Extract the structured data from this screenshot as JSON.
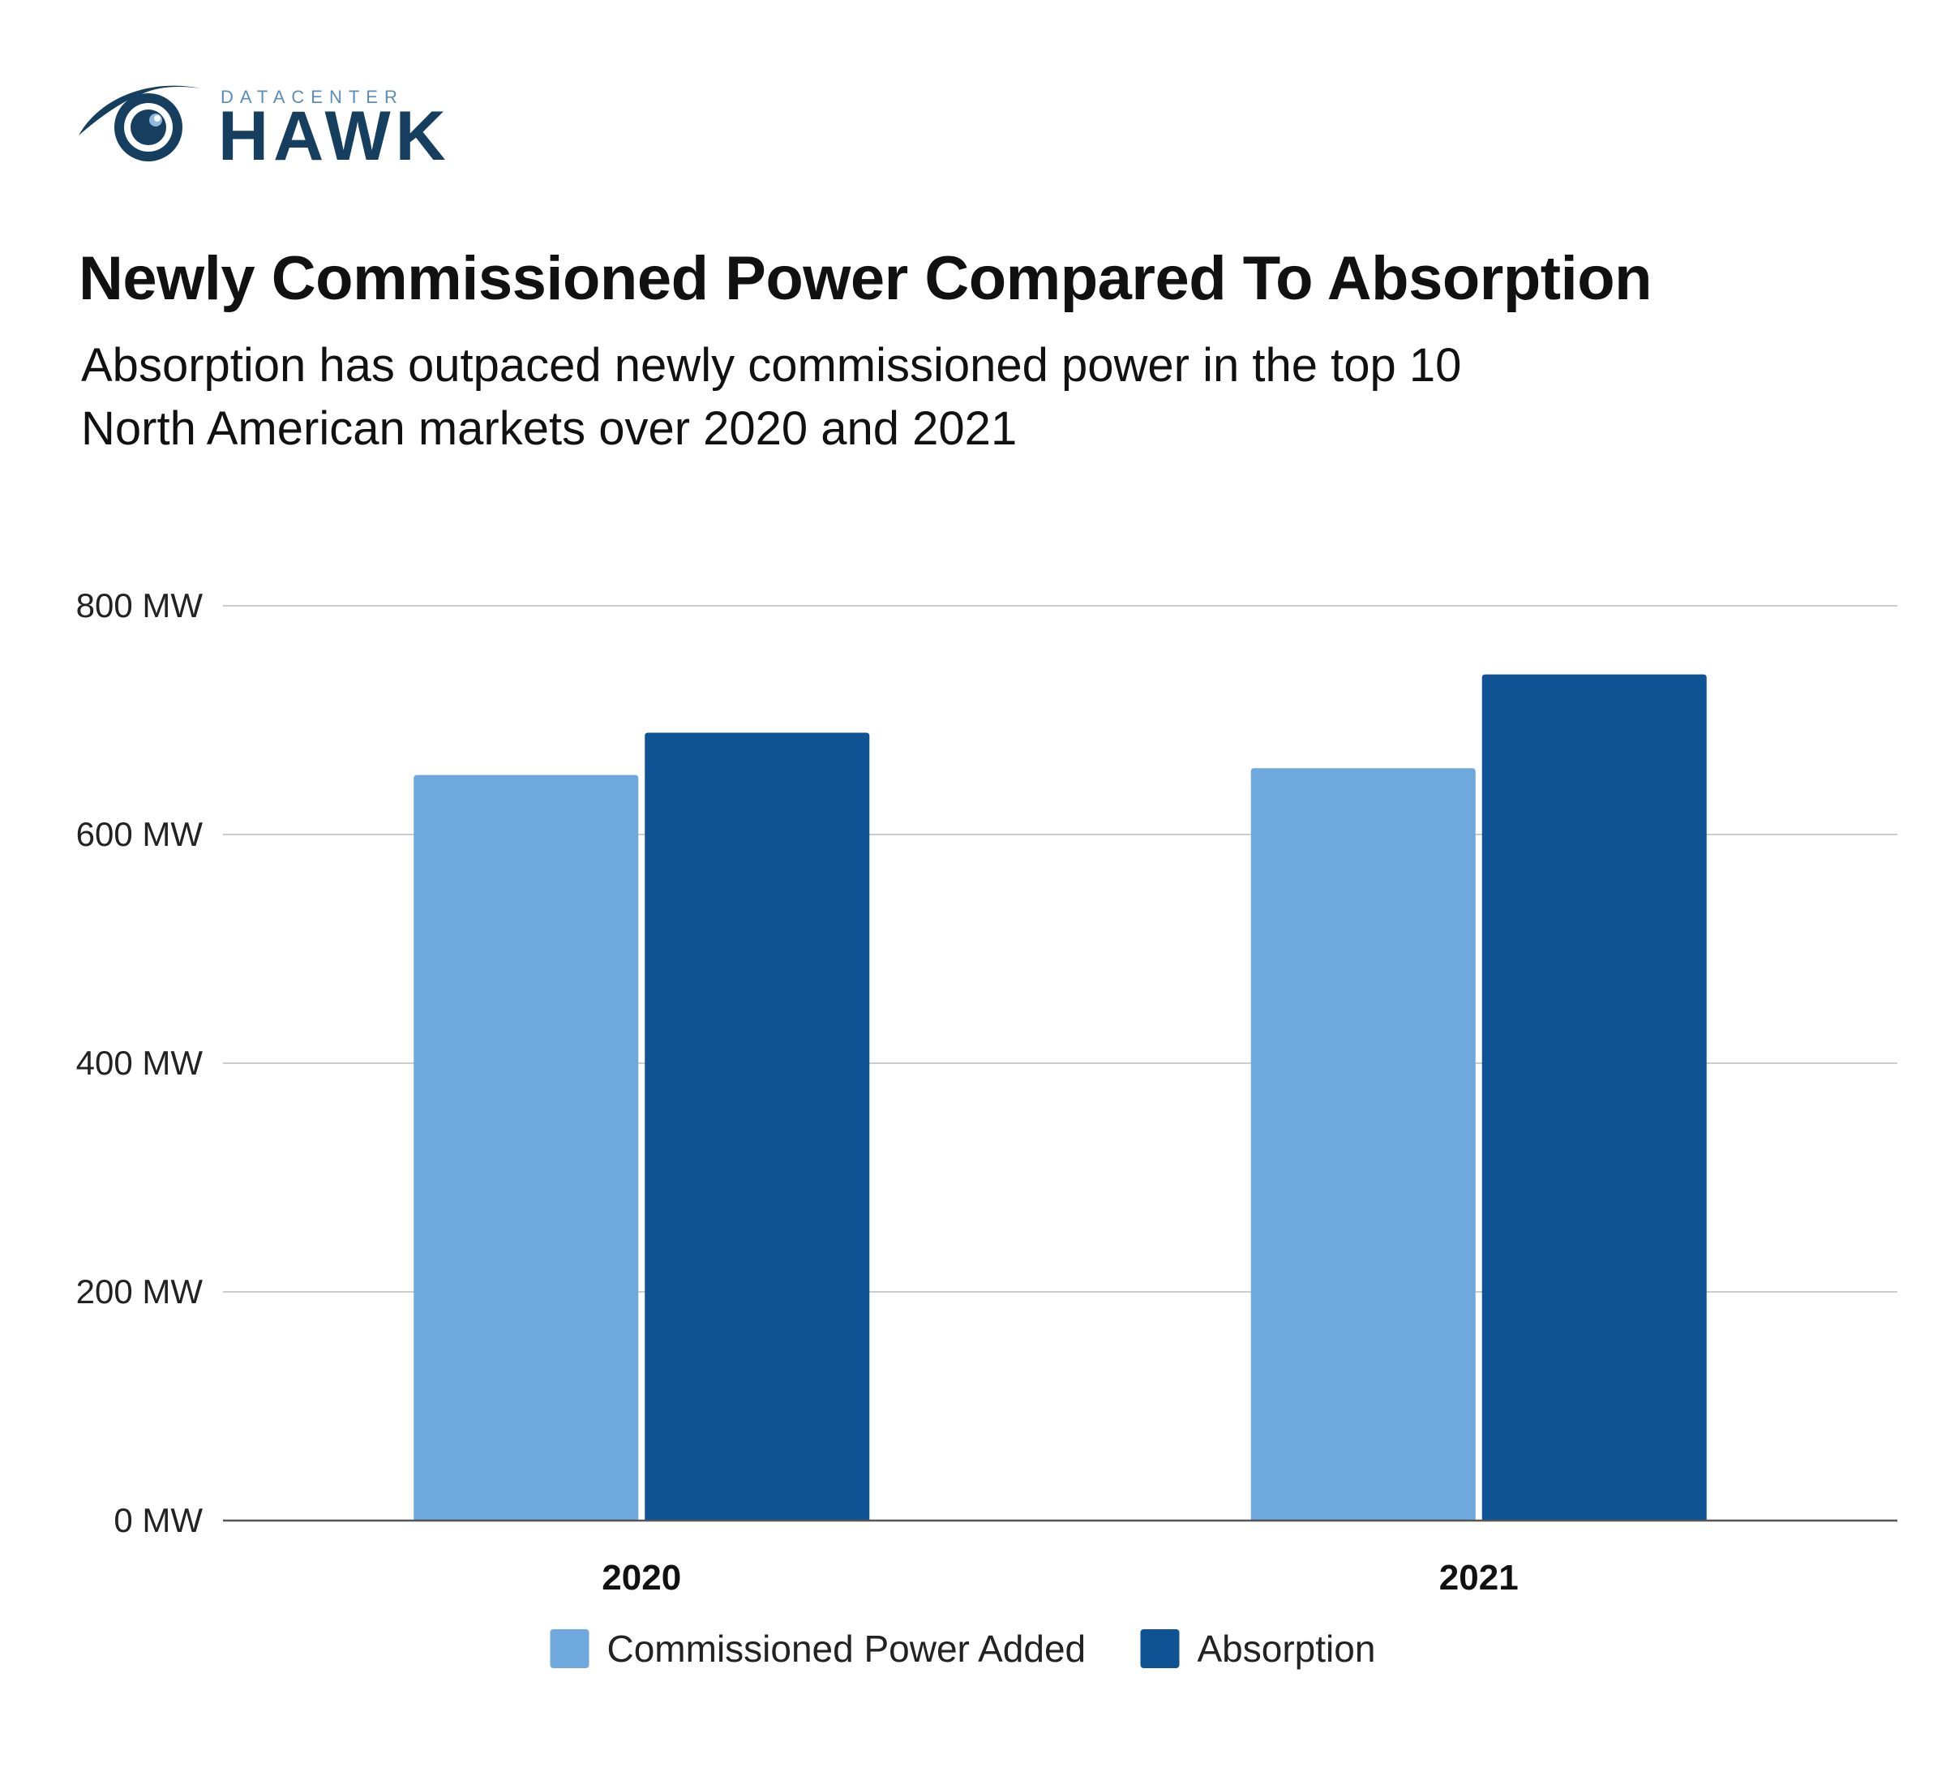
{
  "brand": {
    "logo_small_text": "DATACENTER",
    "logo_big_text": "HAWK",
    "colors": {
      "navy": "#163f5f",
      "light": "#5b8db8"
    }
  },
  "header": {
    "title": "Newly Commissioned Power Compared To Absorption",
    "subtitle_lines": [
      "Absorption has outpaced newly commissioned power in the top 10",
      "North American markets over 2020 and 2021"
    ]
  },
  "chart_data": {
    "type": "bar",
    "title": "Newly Commissioned Power Compared To Absorption",
    "subtitle": "Absorption has outpaced newly commissioned power in the top 10 North American markets over 2020 and 2021",
    "categories": [
      "2020",
      "2021"
    ],
    "series": [
      {
        "name": "Commissioned Power Added",
        "values": [
          652,
          658
        ],
        "color": "#6fa8dc"
      },
      {
        "name": "Absorption",
        "values": [
          689,
          740
        ],
        "color": "#0e5394"
      }
    ],
    "ylim": [
      0,
      800
    ],
    "yticks": [
      0,
      200,
      400,
      600,
      800
    ],
    "ytick_labels": [
      "0 MW",
      "200 MW",
      "400 MW",
      "600 MW",
      "800 MW"
    ],
    "xlabel": "",
    "ylabel": "",
    "grid": true,
    "legend_position": "bottom-center"
  }
}
